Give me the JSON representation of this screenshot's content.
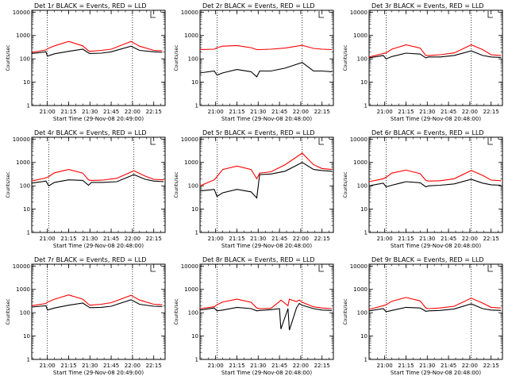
{
  "chart_data": [
    {
      "type": "line",
      "title": "Det 1r BLACK = Events, RED = LLD",
      "xlabel": "Start Time (29-Nov-08 20:49:00)",
      "ylabel": "Counts/sec",
      "xtick_labels": [
        "21:00",
        "21:15",
        "21:30",
        "21:45",
        "22:00",
        "22:15"
      ],
      "ytick_labels": [
        "1",
        "10",
        "100",
        "1000",
        "10000"
      ],
      "yscale": "log",
      "ylim": [
        1,
        12000
      ],
      "x_minutes": [
        0,
        10,
        11,
        16,
        26,
        36,
        40,
        41,
        49,
        56,
        70,
        76,
        86,
        92
      ],
      "series": [
        {
          "name": "BLACK = Events",
          "color": "#000000",
          "values": [
            170,
            200,
            130,
            165,
            210,
            260,
            180,
            170,
            175,
            200,
            350,
            230,
            200,
            190
          ]
        },
        {
          "name": "RED = LLD",
          "color": "#ff0000",
          "values": [
            190,
            240,
            270,
            360,
            560,
            360,
            220,
            210,
            230,
            260,
            560,
            350,
            230,
            220
          ]
        }
      ],
      "vlines_minutes": [
        11,
        71
      ],
      "grid": false
    },
    {
      "type": "line",
      "title": "Det 2r BLACK = Events, RED = LLD",
      "xlabel": "Start Time (29-Nov-08 20:48:00)",
      "ylabel": "Counts/sec",
      "xtick_labels": [
        "21:00",
        "21:15",
        "21:30",
        "21:45",
        "22:00",
        "22:15"
      ],
      "ytick_labels": [
        "1",
        "10",
        "100",
        "1000",
        "10000"
      ],
      "yscale": "log",
      "ylim": [
        1,
        12000
      ],
      "x_minutes": [
        0,
        10,
        12,
        16,
        26,
        36,
        40,
        42,
        50,
        60,
        72,
        80,
        86,
        93
      ],
      "series": [
        {
          "name": "BLACK = Events",
          "color": "#000000",
          "values": [
            25,
            30,
            20,
            25,
            35,
            28,
            17,
            30,
            30,
            40,
            70,
            30,
            30,
            28
          ]
        },
        {
          "name": "RED = LLD",
          "color": "#ff0000",
          "values": [
            250,
            260,
            300,
            350,
            370,
            300,
            250,
            250,
            260,
            290,
            380,
            280,
            260,
            250
          ]
        }
      ],
      "vlines_minutes": [
        12,
        72
      ],
      "grid": false
    },
    {
      "type": "line",
      "title": "Det 3r BLACK = Events, RED = LLD",
      "xlabel": "Start Time (29-Nov-08 20:48:00)",
      "ylabel": "Counts/sec",
      "xtick_labels": [
        "21:00",
        "21:15",
        "21:30",
        "21:45",
        "22:00",
        "22:15"
      ],
      "ytick_labels": [
        "1",
        "10",
        "100",
        "1000",
        "10000"
      ],
      "yscale": "log",
      "ylim": [
        1,
        12000
      ],
      "x_minutes": [
        0,
        10,
        12,
        16,
        26,
        36,
        40,
        42,
        50,
        60,
        72,
        80,
        86,
        93
      ],
      "series": [
        {
          "name": "BLACK = Events",
          "color": "#000000",
          "values": [
            110,
            140,
            100,
            125,
            175,
            160,
            110,
            120,
            120,
            140,
            220,
            140,
            120,
            115
          ]
        },
        {
          "name": "RED = LLD",
          "color": "#ff0000",
          "values": [
            120,
            170,
            180,
            260,
            400,
            290,
            140,
            140,
            150,
            180,
            400,
            250,
            150,
            140
          ]
        }
      ],
      "vlines_minutes": [
        12,
        72
      ],
      "grid": false
    },
    {
      "type": "line",
      "title": "Det 4r BLACK = Events, RED = LLD",
      "xlabel": "Start Time (29-Nov-08 20:48:00)",
      "ylabel": "Counts/sec",
      "xtick_labels": [
        "21:00",
        "21:15",
        "21:30",
        "21:45",
        "22:00",
        "22:15"
      ],
      "ytick_labels": [
        "1",
        "10",
        "100",
        "1000",
        "10000"
      ],
      "yscale": "log",
      "ylim": [
        1,
        12000
      ],
      "x_minutes": [
        0,
        10,
        12,
        16,
        26,
        36,
        40,
        42,
        50,
        60,
        72,
        80,
        86,
        93
      ],
      "series": [
        {
          "name": "BLACK = Events",
          "color": "#000000",
          "values": [
            130,
            160,
            100,
            140,
            180,
            170,
            105,
            140,
            140,
            150,
            300,
            190,
            160,
            150
          ]
        },
        {
          "name": "RED = LLD",
          "color": "#ff0000",
          "values": [
            160,
            220,
            250,
            360,
            500,
            350,
            180,
            170,
            175,
            210,
            440,
            260,
            190,
            180
          ]
        }
      ],
      "vlines_minutes": [
        12,
        72
      ],
      "grid": false
    },
    {
      "type": "line",
      "title": "Det 5r BLACK = Events, RED = LLD",
      "xlabel": "Start Time (29-Nov-08 20:48:00)",
      "ylabel": "Counts/sec",
      "xtick_labels": [
        "21:00",
        "21:15",
        "21:30",
        "21:45",
        "22:00",
        "22:15"
      ],
      "ytick_labels": [
        "1",
        "10",
        "100",
        "1000",
        "10000"
      ],
      "yscale": "log",
      "ylim": [
        1,
        12000
      ],
      "x_minutes": [
        0,
        10,
        12,
        16,
        26,
        36,
        40,
        42,
        50,
        60,
        72,
        80,
        86,
        93
      ],
      "series": [
        {
          "name": "BLACK = Events",
          "color": "#000000",
          "values": [
            60,
            70,
            35,
            50,
            70,
            55,
            30,
            300,
            320,
            420,
            1000,
            500,
            450,
            420
          ]
        },
        {
          "name": "RED = LLD",
          "color": "#ff0000",
          "values": [
            100,
            180,
            250,
            500,
            700,
            500,
            200,
            350,
            400,
            800,
            2500,
            800,
            550,
            500
          ]
        }
      ],
      "vlines_minutes": [
        12,
        72
      ],
      "grid": false
    },
    {
      "type": "line",
      "title": "Det 6r BLACK = Events, RED = LLD",
      "xlabel": "Start Time (29-Nov-08 20:48:00)",
      "ylabel": "Counts/sec",
      "xtick_labels": [
        "21:00",
        "21:15",
        "21:30",
        "21:45",
        "22:00",
        "22:15"
      ],
      "ytick_labels": [
        "1",
        "10",
        "100",
        "1000",
        "10000"
      ],
      "yscale": "log",
      "ylim": [
        1,
        12000
      ],
      "x_minutes": [
        0,
        10,
        12,
        16,
        26,
        36,
        40,
        42,
        50,
        60,
        72,
        80,
        86,
        93
      ],
      "series": [
        {
          "name": "BLACK = Events",
          "color": "#000000",
          "values": [
            100,
            130,
            90,
            105,
            150,
            135,
            90,
            100,
            105,
            120,
            190,
            130,
            110,
            105
          ]
        },
        {
          "name": "RED = LLD",
          "color": "#ff0000",
          "values": [
            150,
            200,
            230,
            350,
            470,
            330,
            170,
            160,
            165,
            200,
            450,
            280,
            175,
            165
          ]
        }
      ],
      "vlines_minutes": [
        12,
        72
      ],
      "grid": false
    },
    {
      "type": "line",
      "title": "Det 7r BLACK = Events, RED = LLD",
      "xlabel": "Start Time (29-Nov-08 20:49:00)",
      "ylabel": "Counts/sec",
      "xtick_labels": [
        "21:00",
        "21:15",
        "21:30",
        "21:45",
        "22:00",
        "22:15"
      ],
      "ytick_labels": [
        "1",
        "10",
        "100",
        "1000",
        "10000"
      ],
      "yscale": "log",
      "ylim": [
        1,
        12000
      ],
      "x_minutes": [
        0,
        10,
        11,
        16,
        26,
        36,
        40,
        41,
        49,
        56,
        70,
        76,
        86,
        92
      ],
      "series": [
        {
          "name": "BLACK = Events",
          "color": "#000000",
          "values": [
            175,
            200,
            130,
            160,
            210,
            260,
            180,
            165,
            170,
            190,
            360,
            230,
            190,
            185
          ]
        },
        {
          "name": "RED = LLD",
          "color": "#ff0000",
          "values": [
            200,
            250,
            280,
            380,
            580,
            380,
            230,
            210,
            230,
            270,
            560,
            350,
            230,
            220
          ]
        }
      ],
      "vlines_minutes": [
        11,
        71
      ],
      "grid": false
    },
    {
      "type": "line",
      "title": "Det 8r BLACK = Events, RED = LLD",
      "xlabel": "Start Time (29-Nov-08 20:48:00)",
      "ylabel": "Counts/sec",
      "xtick_labels": [
        "21:00",
        "21:15",
        "21:30",
        "21:45",
        "22:00",
        "22:15"
      ],
      "ytick_labels": [
        "1",
        "10",
        "100",
        "1000",
        "10000"
      ],
      "yscale": "log",
      "ylim": [
        1,
        12000
      ],
      "x_minutes": [
        0,
        10,
        12,
        16,
        26,
        36,
        40,
        42,
        50,
        56,
        57,
        62,
        63,
        68,
        70,
        72,
        80,
        86,
        93
      ],
      "series": [
        {
          "name": "BLACK = Events",
          "color": "#000000",
          "values": [
            130,
            160,
            120,
            130,
            170,
            150,
            120,
            125,
            135,
            150,
            20,
            150,
            18,
            160,
            250,
            210,
            150,
            130,
            125
          ]
        },
        {
          "name": "RED = LLD",
          "color": "#ff0000",
          "values": [
            150,
            180,
            220,
            290,
            380,
            280,
            160,
            150,
            155,
            300,
            350,
            200,
            380,
            300,
            350,
            280,
            180,
            160,
            150
          ]
        }
      ],
      "vlines_minutes": [
        12,
        72
      ],
      "grid": false
    },
    {
      "type": "line",
      "title": "Det 9r BLACK = Events, RED = LLD",
      "xlabel": "Start Time (29-Nov-08 20:48:00)",
      "ylabel": "Counts/sec",
      "xtick_labels": [
        "21:00",
        "21:15",
        "21:30",
        "21:45",
        "22:00",
        "22:15"
      ],
      "ytick_labels": [
        "1",
        "10",
        "100",
        "1000",
        "10000"
      ],
      "yscale": "log",
      "ylim": [
        1,
        12000
      ],
      "x_minutes": [
        0,
        10,
        12,
        16,
        26,
        36,
        40,
        42,
        50,
        60,
        72,
        80,
        86,
        93
      ],
      "series": [
        {
          "name": "BLACK = Events",
          "color": "#000000",
          "values": [
            120,
            150,
            110,
            125,
            170,
            160,
            115,
            120,
            125,
            145,
            240,
            150,
            130,
            125
          ]
        },
        {
          "name": "RED = LLD",
          "color": "#ff0000",
          "values": [
            140,
            200,
            220,
            310,
            450,
            320,
            160,
            150,
            160,
            190,
            420,
            260,
            170,
            160
          ]
        }
      ],
      "vlines_minutes": [
        12,
        72
      ],
      "grid": false
    }
  ]
}
